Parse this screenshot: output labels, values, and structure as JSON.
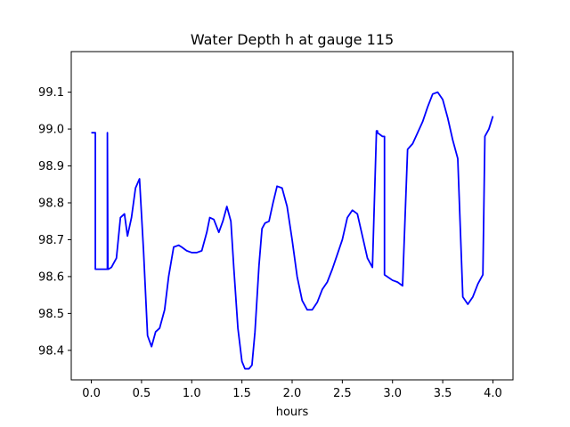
{
  "chart_data": {
    "type": "line",
    "title": "Water Depth h at gauge 115",
    "xlabel": "hours",
    "ylabel": "",
    "xlim": [
      -0.2,
      4.2
    ],
    "ylim": [
      98.32,
      99.21
    ],
    "xticks": [
      0.0,
      0.5,
      1.0,
      1.5,
      2.0,
      2.5,
      3.0,
      3.5,
      4.0
    ],
    "xtick_labels": [
      "0.0",
      "0.5",
      "1.0",
      "1.5",
      "2.0",
      "2.5",
      "3.0",
      "3.5",
      "4.0"
    ],
    "yticks": [
      98.4,
      98.5,
      98.6,
      98.7,
      98.8,
      98.9,
      99.0,
      99.1
    ],
    "ytick_labels": [
      "98.4",
      "98.5",
      "98.6",
      "98.7",
      "98.8",
      "98.9",
      "99.0",
      "99.1"
    ],
    "grid": false,
    "series": [
      {
        "color": "#0000ff",
        "x": [
          0.0,
          0.04,
          0.04,
          0.16,
          0.16,
          0.165,
          0.17,
          0.2,
          0.25,
          0.29,
          0.33,
          0.36,
          0.4,
          0.44,
          0.48,
          0.52,
          0.56,
          0.6,
          0.64,
          0.68,
          0.73,
          0.77,
          0.82,
          0.87,
          0.9,
          0.95,
          1.0,
          1.05,
          1.1,
          1.15,
          1.18,
          1.22,
          1.27,
          1.31,
          1.35,
          1.39,
          1.42,
          1.46,
          1.5,
          1.53,
          1.57,
          1.6,
          1.63,
          1.67,
          1.7,
          1.73,
          1.77,
          1.81,
          1.85,
          1.9,
          1.95,
          2.0,
          2.05,
          2.1,
          2.15,
          2.2,
          2.25,
          2.3,
          2.35,
          2.4,
          2.45,
          2.5,
          2.55,
          2.6,
          2.65,
          2.7,
          2.75,
          2.8,
          2.84,
          2.85,
          2.85,
          2.9,
          2.92,
          2.92,
          3.0,
          3.05,
          3.1,
          3.15,
          3.15,
          3.2,
          3.25,
          3.3,
          3.35,
          3.4,
          3.45,
          3.5,
          3.55,
          3.6,
          3.65,
          3.7,
          3.7,
          3.75,
          3.8,
          3.85,
          3.9,
          3.92,
          3.92,
          3.96,
          4.0
        ],
        "y": [
          98.99,
          98.99,
          98.62,
          98.62,
          98.99,
          98.62,
          98.62,
          98.625,
          98.65,
          98.76,
          98.77,
          98.71,
          98.76,
          98.84,
          98.865,
          98.67,
          98.44,
          98.41,
          98.45,
          98.46,
          98.51,
          98.6,
          98.68,
          98.685,
          98.68,
          98.67,
          98.665,
          98.665,
          98.67,
          98.72,
          98.76,
          98.755,
          98.72,
          98.75,
          98.79,
          98.75,
          98.62,
          98.46,
          98.37,
          98.35,
          98.35,
          98.36,
          98.45,
          98.63,
          98.73,
          98.745,
          98.75,
          98.8,
          98.845,
          98.84,
          98.79,
          98.7,
          98.6,
          98.535,
          98.51,
          98.51,
          98.53,
          98.565,
          98.585,
          98.62,
          98.66,
          98.7,
          98.76,
          98.78,
          98.77,
          98.71,
          98.65,
          98.625,
          98.995,
          98.995,
          98.99,
          98.98,
          98.98,
          98.605,
          98.59,
          98.585,
          98.575,
          98.945,
          98.945,
          98.96,
          98.99,
          99.02,
          99.06,
          99.095,
          99.1,
          99.08,
          99.03,
          98.97,
          98.92,
          98.545,
          98.545,
          98.525,
          98.545,
          98.58,
          98.605,
          98.98,
          98.98,
          99.0,
          99.035
        ]
      }
    ]
  }
}
